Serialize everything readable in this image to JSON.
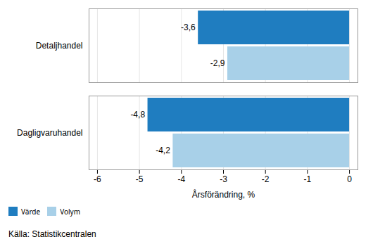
{
  "chart_data": {
    "type": "bar",
    "orientation": "horizontal",
    "categories": [
      "Dagligvaruhandel",
      "Detaljhandel"
    ],
    "series": [
      {
        "name": "Värde",
        "color": "#1F7DC0",
        "values": [
          -4.8,
          -3.6
        ],
        "value_labels": [
          "-4,8",
          "-3,6"
        ]
      },
      {
        "name": "Volym",
        "color": "#A8D0E8",
        "values": [
          -4.2,
          -2.9
        ],
        "value_labels": [
          "-4,2",
          "-2,9"
        ]
      }
    ],
    "xlabel": "Årsförändring, %",
    "xlim": [
      -6.2,
      0.2
    ],
    "xticks": [
      -6,
      -5,
      -4,
      -3,
      -2,
      -1,
      0
    ],
    "grid": true,
    "legend": "lower left",
    "data_labels": true,
    "annotations": [
      "Källa:  Statistikcentralen"
    ]
  }
}
